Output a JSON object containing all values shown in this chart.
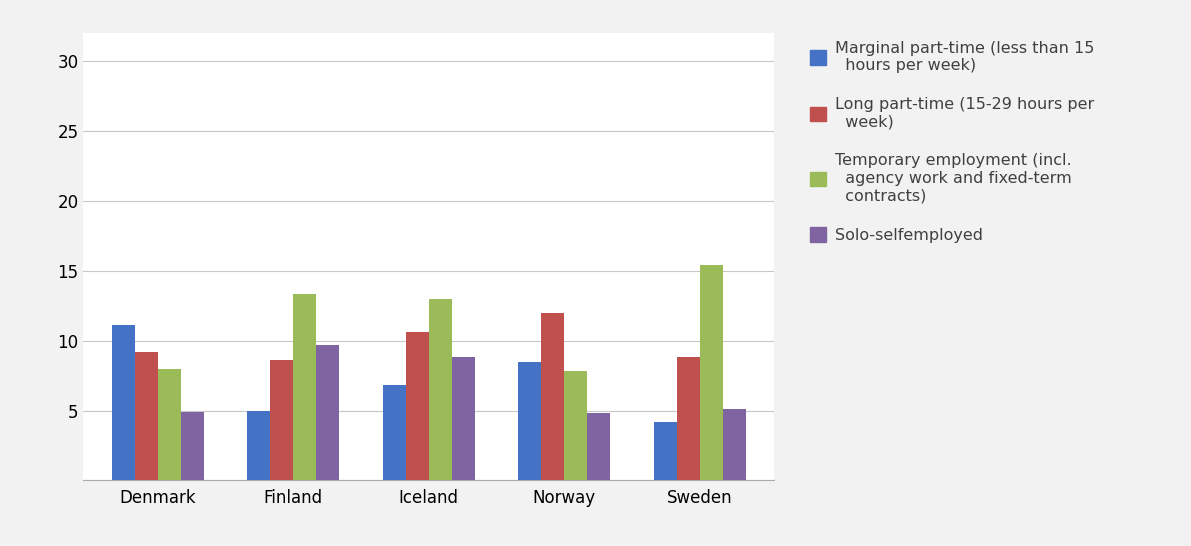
{
  "categories": [
    "Denmark",
    "Finland",
    "Iceland",
    "Norway",
    "Sweden"
  ],
  "series": [
    {
      "label": "Marginal part-time (less than 15\n  hours per week)",
      "color": "#4472C4",
      "values": [
        11.1,
        5.0,
        6.8,
        8.5,
        4.2
      ]
    },
    {
      "label": "Long part-time (15-29 hours per\n  week)",
      "color": "#C0504D",
      "values": [
        9.2,
        8.6,
        10.6,
        12.0,
        8.8
      ]
    },
    {
      "label": "Temporary employment (incl.\n  agency work and fixed-term\n  contracts)",
      "color": "#9BBB59",
      "values": [
        8.0,
        13.3,
        13.0,
        7.8,
        15.4
      ]
    },
    {
      "label": "Solo-selfemployed",
      "color": "#8064A2",
      "values": [
        4.9,
        9.7,
        8.8,
        4.8,
        5.1
      ]
    }
  ],
  "ylim": [
    0,
    32
  ],
  "yticks": [
    0,
    5,
    10,
    15,
    20,
    25,
    30
  ],
  "yticklabels": [
    "",
    "5",
    "10",
    "15",
    "20",
    "25",
    "30"
  ],
  "background_color": "#f2f2f2",
  "plot_background_color": "#ffffff",
  "grid_color": "#c8c8c8",
  "bar_width": 0.17,
  "legend_fontsize": 11.5,
  "tick_fontsize": 12
}
